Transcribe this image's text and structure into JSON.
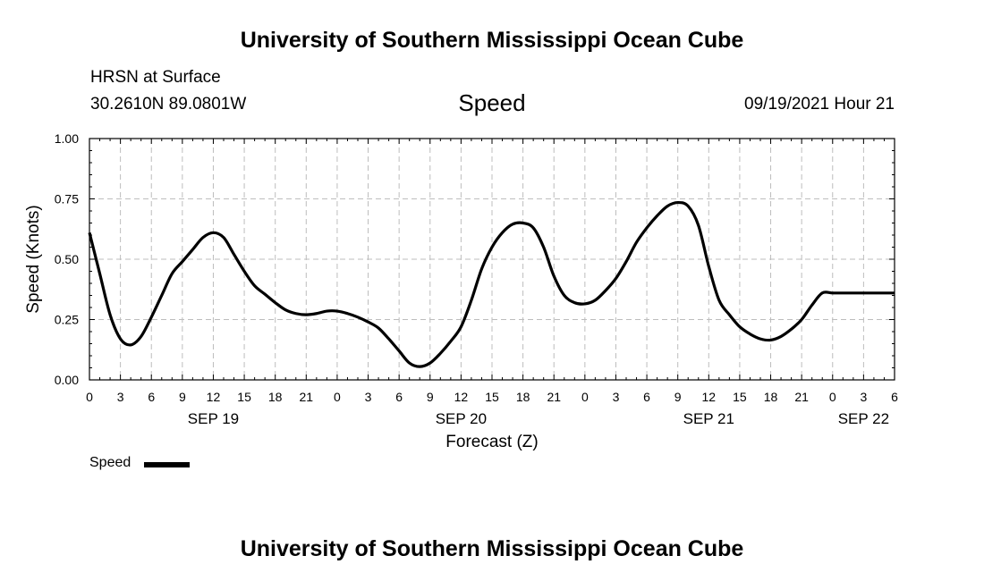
{
  "header": {
    "title": "University of Southern Mississippi Ocean Cube",
    "station": "HRSN at Surface",
    "coords": "30.2610N  89.0801W",
    "variable": "Speed",
    "datetime": "09/19/2021 Hour 21"
  },
  "footer": {
    "title": "University of Southern Mississippi Ocean Cube"
  },
  "legend": {
    "label": "Speed"
  },
  "chart_data": {
    "type": "line",
    "ylabel": "Speed (Knots)",
    "xlabel": "Forecast (Z)",
    "ylim": [
      0,
      1.0
    ],
    "yticks": [
      "0.00",
      "0.25",
      "0.50",
      "0.75",
      "1.00"
    ],
    "xticks": [
      "0",
      "3",
      "6",
      "9",
      "12",
      "15",
      "18",
      "21",
      "0",
      "3",
      "6",
      "9",
      "12",
      "15",
      "18",
      "21",
      "0",
      "3",
      "6",
      "9",
      "12",
      "15",
      "18",
      "21",
      "0",
      "3",
      "6"
    ],
    "date_labels": [
      {
        "label": "SEP 19",
        "at_tick": 4
      },
      {
        "label": "SEP 20",
        "at_tick": 12
      },
      {
        "label": "SEP 21",
        "at_tick": 20
      },
      {
        "label": "SEP 22",
        "at_tick": 25
      }
    ],
    "grid": true,
    "series": [
      {
        "name": "Speed",
        "color": "#000000",
        "x_hours": [
          0,
          1,
          2,
          3,
          4,
          5,
          6,
          7,
          8,
          9,
          10,
          11,
          12,
          13,
          14,
          15,
          16,
          17,
          18,
          19,
          20,
          21,
          22,
          23,
          24,
          25,
          26,
          27,
          28,
          29,
          30,
          31,
          32,
          33,
          34,
          35,
          36,
          37,
          38,
          39,
          40,
          41,
          42,
          43,
          44,
          45,
          46,
          47,
          48,
          49,
          50,
          51,
          52,
          53,
          54,
          55,
          56,
          57,
          58,
          59,
          60,
          61,
          62,
          63,
          64,
          65,
          66,
          67,
          68,
          69,
          70,
          71,
          72,
          73,
          74,
          75,
          76,
          77,
          78
        ],
        "values": [
          0.61,
          0.44,
          0.27,
          0.17,
          0.145,
          0.18,
          0.26,
          0.35,
          0.44,
          0.49,
          0.54,
          0.59,
          0.61,
          0.59,
          0.52,
          0.45,
          0.39,
          0.355,
          0.32,
          0.29,
          0.275,
          0.27,
          0.275,
          0.285,
          0.285,
          0.275,
          0.26,
          0.24,
          0.215,
          0.17,
          0.12,
          0.07,
          0.055,
          0.07,
          0.11,
          0.16,
          0.22,
          0.33,
          0.46,
          0.55,
          0.61,
          0.645,
          0.65,
          0.63,
          0.55,
          0.43,
          0.35,
          0.32,
          0.315,
          0.33,
          0.37,
          0.42,
          0.49,
          0.57,
          0.63,
          0.68,
          0.72,
          0.735,
          0.72,
          0.64,
          0.47,
          0.33,
          0.27,
          0.22,
          0.19,
          0.17,
          0.165,
          0.18,
          0.21,
          0.25,
          0.31,
          0.36,
          0.36,
          0.36,
          0.36,
          0.36,
          0.36,
          0.36,
          0.36
        ]
      }
    ]
  }
}
